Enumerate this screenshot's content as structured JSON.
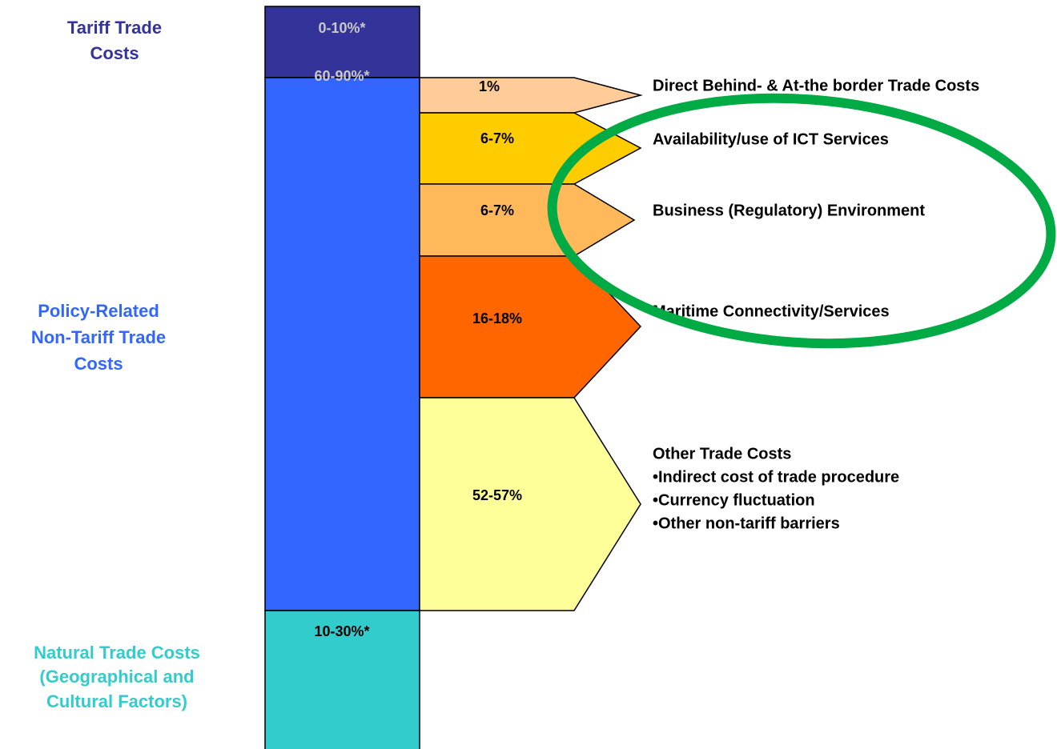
{
  "left_labels": [
    {
      "lines": [
        "Tariff Trade",
        "Costs"
      ]
    },
    {
      "lines": [
        "Policy-Related",
        "Non-Tariff Trade",
        "Costs"
      ]
    },
    {
      "lines": [
        "Natural Trade Costs",
        "(Geographical and",
        "Cultural Factors)"
      ]
    }
  ],
  "main_bar": [
    {
      "label": "0-10%*"
    },
    {
      "label": "60-90%*"
    },
    {
      "label": "10-30%*"
    }
  ],
  "breakdown": [
    {
      "label": "1%",
      "description": [
        "Direct Behind- & At-the border Trade Costs"
      ]
    },
    {
      "label": "6-7%",
      "description": [
        "Availability/use of ICT Services"
      ]
    },
    {
      "label": "6-7%",
      "description": [
        "Business (Regulatory) Environment"
      ]
    },
    {
      "label": "16-18%",
      "description": [
        "Maritime Connectivity/Services"
      ]
    },
    {
      "label": "52-57%",
      "description": [
        "Other Trade Costs",
        "•Indirect cost of trade procedure",
        "•Currency fluctuation",
        "•Other non-tariff barriers"
      ]
    }
  ]
}
